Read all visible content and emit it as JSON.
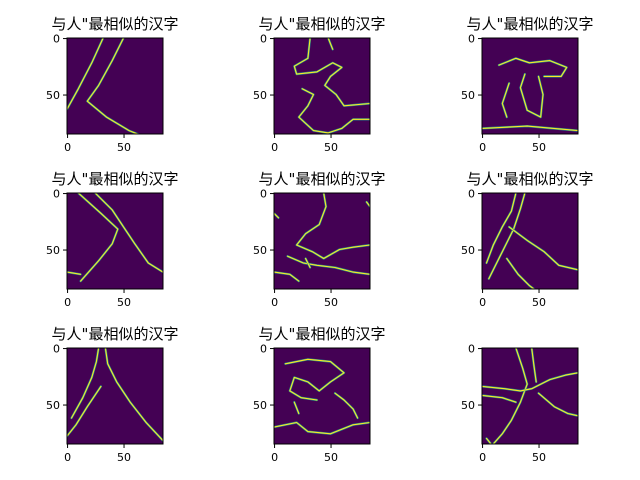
{
  "figure": {
    "background": "#ffffff",
    "colormap": {
      "background": "#440154",
      "edge_bright": "#fde725",
      "edge_mid": "#21918c"
    }
  },
  "chart_data": [
    {
      "type": "heatmap",
      "title": "与人\"最相似的汉字",
      "image_size": [
        85,
        85
      ],
      "x_ticks": [
        0,
        50
      ],
      "y_ticks": [
        0,
        50
      ],
      "content": "edge map resembling 人 (two strokes)",
      "strokes": [
        [
          [
            32,
            0
          ],
          [
            22,
            22
          ],
          [
            10,
            45
          ],
          [
            0,
            63
          ]
        ],
        [
          [
            50,
            0
          ],
          [
            40,
            20
          ],
          [
            28,
            42
          ],
          [
            18,
            56
          ],
          [
            35,
            70
          ],
          [
            55,
            82
          ],
          [
            70,
            88
          ]
        ]
      ]
    },
    {
      "type": "heatmap",
      "title": "与人\"最相似的汉字",
      "image_size": [
        85,
        85
      ],
      "x_ticks": [
        0,
        50
      ],
      "y_ticks": [
        0,
        50
      ],
      "content": "edge map of a blob-like character",
      "strokes": [
        [
          [
            32,
            0
          ],
          [
            30,
            18
          ],
          [
            18,
            25
          ],
          [
            20,
            32
          ],
          [
            38,
            30
          ],
          [
            52,
            22
          ],
          [
            60,
            26
          ],
          [
            50,
            34
          ],
          [
            45,
            42
          ],
          [
            55,
            50
          ],
          [
            62,
            60
          ],
          [
            85,
            58
          ]
        ],
        [
          [
            25,
            45
          ],
          [
            35,
            50
          ],
          [
            30,
            60
          ],
          [
            22,
            70
          ],
          [
            35,
            82
          ],
          [
            48,
            84
          ],
          [
            60,
            80
          ],
          [
            70,
            72
          ],
          [
            85,
            72
          ]
        ],
        [
          [
            48,
            0
          ],
          [
            52,
            10
          ]
        ]
      ]
    },
    {
      "type": "heatmap",
      "title": "与人\"最相似的汉字",
      "image_size": [
        85,
        85
      ],
      "x_ticks": [
        0,
        50
      ],
      "y_ticks": [
        0,
        50
      ],
      "content": "edge map of a 立-like character",
      "strokes": [
        [
          [
            15,
            24
          ],
          [
            30,
            18
          ],
          [
            42,
            22
          ],
          [
            60,
            20
          ],
          [
            75,
            26
          ],
          [
            70,
            34
          ],
          [
            55,
            34
          ]
        ],
        [
          [
            38,
            32
          ],
          [
            34,
            44
          ],
          [
            40,
            64
          ],
          [
            52,
            70
          ],
          [
            54,
            50
          ],
          [
            50,
            34
          ]
        ],
        [
          [
            24,
            40
          ],
          [
            18,
            58
          ],
          [
            22,
            70
          ]
        ],
        [
          [
            0,
            80
          ],
          [
            40,
            78
          ],
          [
            85,
            82
          ]
        ],
        [
          [
            0,
            88
          ],
          [
            85,
            88
          ]
        ]
      ]
    },
    {
      "type": "heatmap",
      "title": "与人\"最相似的汉字",
      "image_size": [
        85,
        85
      ],
      "x_ticks": [
        0,
        50
      ],
      "y_ticks": [
        0,
        50
      ],
      "content": "edge map resembling 人 (wide legs)",
      "strokes": [
        [
          [
            25,
            0
          ],
          [
            40,
            15
          ],
          [
            50,
            30
          ],
          [
            60,
            45
          ],
          [
            72,
            62
          ],
          [
            85,
            70
          ]
        ],
        [
          [
            10,
            0
          ],
          [
            30,
            18
          ],
          [
            45,
            32
          ],
          [
            40,
            45
          ],
          [
            28,
            60
          ],
          [
            12,
            78
          ]
        ],
        [
          [
            0,
            70
          ],
          [
            12,
            72
          ]
        ]
      ]
    },
    {
      "type": "heatmap",
      "title": "与人\"最相似的汉字",
      "image_size": [
        85,
        85
      ],
      "x_ticks": [
        0,
        50
      ],
      "y_ticks": [
        0,
        50
      ],
      "content": "edge map of a fragmented character",
      "strokes": [
        [
          [
            44,
            0
          ],
          [
            46,
            12
          ],
          [
            40,
            28
          ],
          [
            28,
            36
          ],
          [
            20,
            46
          ],
          [
            34,
            52
          ],
          [
            44,
            58
          ],
          [
            58,
            50
          ],
          [
            70,
            48
          ],
          [
            85,
            46
          ]
        ],
        [
          [
            12,
            56
          ],
          [
            26,
            62
          ],
          [
            38,
            64
          ],
          [
            54,
            66
          ],
          [
            70,
            70
          ],
          [
            85,
            72
          ]
        ],
        [
          [
            0,
            70
          ],
          [
            14,
            72
          ],
          [
            22,
            78
          ]
        ],
        [
          [
            28,
            58
          ],
          [
            32,
            66
          ]
        ],
        [
          [
            0,
            18
          ],
          [
            4,
            22
          ]
        ],
        [
          [
            82,
            8
          ],
          [
            85,
            12
          ]
        ]
      ]
    },
    {
      "type": "heatmap",
      "title": "与人\"最相似的汉字",
      "image_size": [
        85,
        85
      ],
      "x_ticks": [
        0,
        50
      ],
      "y_ticks": [
        0,
        50
      ],
      "content": "edge map resembling 人 with long left stroke",
      "strokes": [
        [
          [
            30,
            0
          ],
          [
            26,
            16
          ],
          [
            18,
            30
          ],
          [
            10,
            46
          ],
          [
            4,
            62
          ]
        ],
        [
          [
            38,
            0
          ],
          [
            34,
            14
          ],
          [
            28,
            32
          ],
          [
            18,
            52
          ],
          [
            6,
            76
          ]
        ],
        [
          [
            24,
            30
          ],
          [
            40,
            42
          ],
          [
            55,
            52
          ],
          [
            68,
            64
          ],
          [
            85,
            68
          ]
        ],
        [
          [
            22,
            58
          ],
          [
            32,
            72
          ],
          [
            42,
            82
          ],
          [
            50,
            88
          ]
        ]
      ]
    },
    {
      "type": "heatmap",
      "title": "与人\"最相似的汉字",
      "image_size": [
        85,
        85
      ],
      "x_ticks": [
        0,
        50
      ],
      "y_ticks": [
        0,
        50
      ],
      "content": "edge map resembling 人 (narrow)",
      "strokes": [
        [
          [
            28,
            0
          ],
          [
            26,
            12
          ],
          [
            22,
            26
          ],
          [
            14,
            44
          ],
          [
            4,
            62
          ]
        ],
        [
          [
            34,
            0
          ],
          [
            36,
            14
          ],
          [
            44,
            30
          ],
          [
            56,
            48
          ],
          [
            70,
            66
          ],
          [
            85,
            82
          ]
        ],
        [
          [
            30,
            34
          ],
          [
            18,
            52
          ],
          [
            8,
            68
          ],
          [
            0,
            78
          ]
        ]
      ]
    },
    {
      "type": "heatmap",
      "title": "与人\"最相似的汉字",
      "image_size": [
        85,
        85
      ],
      "x_ticks": [
        0,
        50
      ],
      "y_ticks": [
        0,
        50
      ],
      "content": "edge map of a 乏-like character",
      "strokes": [
        [
          [
            10,
            14
          ],
          [
            30,
            10
          ],
          [
            50,
            12
          ],
          [
            62,
            22
          ],
          [
            50,
            30
          ],
          [
            40,
            38
          ],
          [
            30,
            30
          ],
          [
            18,
            26
          ],
          [
            14,
            38
          ],
          [
            24,
            44
          ],
          [
            38,
            46
          ]
        ],
        [
          [
            54,
            40
          ],
          [
            62,
            46
          ],
          [
            70,
            54
          ],
          [
            74,
            62
          ]
        ],
        [
          [
            0,
            70
          ],
          [
            20,
            66
          ],
          [
            30,
            74
          ],
          [
            50,
            76
          ],
          [
            70,
            68
          ],
          [
            85,
            66
          ]
        ],
        [
          [
            18,
            48
          ],
          [
            22,
            58
          ]
        ]
      ]
    },
    {
      "type": "heatmap",
      "title": "",
      "image_size": [
        85,
        85
      ],
      "x_ticks": [
        0,
        50
      ],
      "y_ticks": [
        0,
        50
      ],
      "content": "edge map of a 十-like star shape",
      "strokes": [
        [
          [
            30,
            0
          ],
          [
            36,
            18
          ],
          [
            40,
            32
          ],
          [
            34,
            48
          ],
          [
            26,
            64
          ],
          [
            18,
            76
          ],
          [
            10,
            85
          ]
        ],
        [
          [
            44,
            0
          ],
          [
            46,
            16
          ],
          [
            48,
            30
          ]
        ],
        [
          [
            0,
            34
          ],
          [
            20,
            36
          ],
          [
            34,
            38
          ],
          [
            44,
            36
          ],
          [
            60,
            28
          ],
          [
            74,
            24
          ],
          [
            85,
            22
          ]
        ],
        [
          [
            0,
            42
          ],
          [
            18,
            44
          ],
          [
            30,
            48
          ]
        ],
        [
          [
            50,
            40
          ],
          [
            64,
            52
          ],
          [
            76,
            58
          ],
          [
            85,
            60
          ]
        ],
        [
          [
            4,
            80
          ],
          [
            8,
            85
          ]
        ]
      ]
    }
  ]
}
